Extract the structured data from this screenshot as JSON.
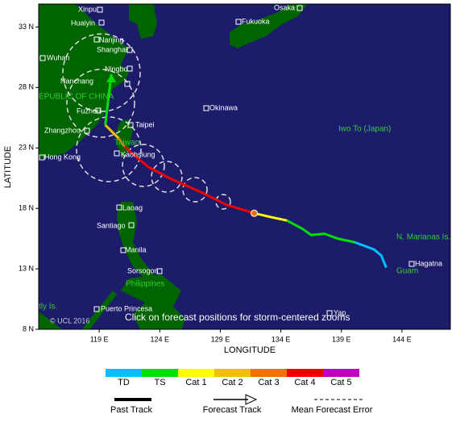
{
  "map": {
    "type": "map",
    "xlabel": "LONGITUDE",
    "ylabel": "LATITUDE",
    "xlim": [
      114,
      148
    ],
    "ylim": [
      8,
      34.9
    ],
    "xticks": [
      {
        "value": 119,
        "label": "119 E"
      },
      {
        "value": 124,
        "label": "124 E"
      },
      {
        "value": 129,
        "label": "129 E"
      },
      {
        "value": 134,
        "label": "134 E"
      },
      {
        "value": 139,
        "label": "139 E"
      },
      {
        "value": 144,
        "label": "144 E"
      }
    ],
    "yticks": [
      {
        "value": 8,
        "label": "8 N"
      },
      {
        "value": 13,
        "label": "13 N"
      },
      {
        "value": 18,
        "label": "18 N"
      },
      {
        "value": 23,
        "label": "23 N"
      },
      {
        "value": 28,
        "label": "28 N"
      },
      {
        "value": 33,
        "label": "33 N"
      }
    ],
    "regions": [
      "EPUBLIC OF CHINA",
      "Taiwan",
      "Iwo To (Japan)",
      "N. Marianas Is.",
      "Guam",
      "Philippines",
      "tly Is."
    ],
    "cities": [
      "Xinpu",
      "Huaiyin",
      "Nanjing",
      "Shanghai",
      "Wuhan",
      "Ningbo",
      "Nanchang",
      "Fuzhou",
      "Taipei",
      "Zhangzhou",
      "Hong Kong",
      "Kaohsiung",
      "Osaka",
      "Fukuoka",
      "Okinawa",
      "Laoag",
      "Santiago",
      "Manila",
      "Sorsogon",
      "Puerto Princesa",
      "Yap",
      "Hagatna"
    ],
    "copyright": "© UCL 2016",
    "hint": "Click on forecast positions for storm-centered zooms",
    "track": [
      {
        "color": "#00c0ff",
        "lon": [
          142.7,
          142.3,
          141.7,
          140.1
        ],
        "lat": [
          13.1,
          14.1,
          14.6,
          15.2
        ]
      },
      {
        "color": "#00e000",
        "lon": [
          140.1,
          138.7,
          137.6,
          136.5,
          135.8,
          134.5
        ],
        "lat": [
          15.2,
          15.5,
          15.9,
          15.8,
          16.3,
          17.0
        ]
      },
      {
        "color": "#ffff00",
        "lon": [
          134.5,
          133.1,
          131.8
        ],
        "lat": [
          17.0,
          17.3,
          17.6
        ]
      },
      {
        "color": "#f00000",
        "lon": [
          131.8,
          129.5,
          127.5,
          124.8,
          123.1,
          122.0,
          121.1
        ],
        "lat": [
          17.6,
          18.3,
          19.3,
          20.5,
          21.4,
          22.3,
          23.1
        ]
      },
      {
        "color": "#f07000",
        "lon": [
          121.1,
          120.6
        ],
        "lat": [
          23.1,
          23.8
        ]
      },
      {
        "color": "#f0c000",
        "lon": [
          120.6,
          119.5
        ],
        "lat": [
          23.8,
          24.9
        ]
      },
      {
        "color": "#00e000",
        "lon": [
          119.5,
          120.0
        ],
        "lat": [
          24.9,
          29.1
        ]
      }
    ],
    "legend": {
      "categories": [
        {
          "name": "TD",
          "color": "#00c0ff"
        },
        {
          "name": "TS",
          "color": "#00e000"
        },
        {
          "name": "Cat 1",
          "color": "#ffff00"
        },
        {
          "name": "Cat 2",
          "color": "#f0c000"
        },
        {
          "name": "Cat 3",
          "color": "#f07000"
        },
        {
          "name": "Cat 4",
          "color": "#f00000"
        },
        {
          "name": "Cat 5",
          "color": "#c000c0"
        }
      ],
      "lines": [
        "Past Track",
        "Forecast Track",
        "Mean Forecast Error"
      ]
    }
  }
}
